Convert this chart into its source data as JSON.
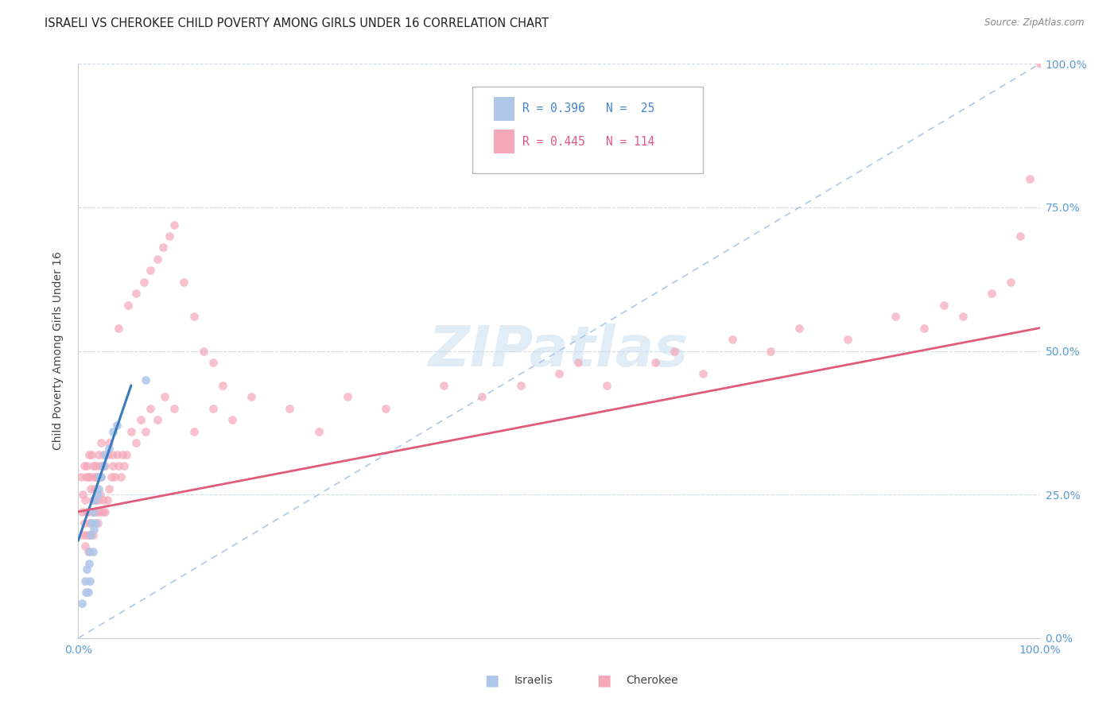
{
  "title": "ISRAELI VS CHEROKEE CHILD POVERTY AMONG GIRLS UNDER 16 CORRELATION CHART",
  "source": "Source: ZipAtlas.com",
  "ylabel": "Child Poverty Among Girls Under 16",
  "xlim": [
    0,
    1.0
  ],
  "ylim": [
    0,
    1.0
  ],
  "xtick_positions": [
    0.0,
    1.0
  ],
  "xtick_labels": [
    "0.0%",
    "100.0%"
  ],
  "ytick_positions": [
    0.0,
    0.25,
    0.5,
    0.75,
    1.0
  ],
  "ytick_labels": [
    "0.0%",
    "25.0%",
    "50.0%",
    "75.0%",
    "100.0%"
  ],
  "watermark_text": "ZIPatlas",
  "legend_label1": "Israelis",
  "legend_label2": "Cherokee",
  "israeli_R": 0.396,
  "israeli_N": 25,
  "cherokee_R": 0.445,
  "cherokee_N": 114,
  "israeli_color": "#aec6e8",
  "cherokee_color": "#f4a7b9",
  "israeli_line_color": "#3a7abf",
  "cherokee_line_color": "#e05c7a",
  "diagonal_color": "#b0c8e8",
  "isr_line_x0": 0.0,
  "isr_line_y0": 0.17,
  "isr_line_x1": 0.055,
  "isr_line_y1": 0.44,
  "che_line_x0": 0.0,
  "che_line_y0": 0.22,
  "che_line_x1": 1.0,
  "che_line_y1": 0.54,
  "isr_x": [
    0.004,
    0.007,
    0.008,
    0.009,
    0.01,
    0.011,
    0.011,
    0.012,
    0.013,
    0.014,
    0.015,
    0.015,
    0.016,
    0.017,
    0.018,
    0.02,
    0.021,
    0.022,
    0.024,
    0.026,
    0.028,
    0.032,
    0.036,
    0.04,
    0.07
  ],
  "isr_y": [
    0.06,
    0.1,
    0.08,
    0.12,
    0.08,
    0.13,
    0.15,
    0.1,
    0.18,
    0.2,
    0.15,
    0.22,
    0.19,
    0.24,
    0.2,
    0.25,
    0.26,
    0.28,
    0.28,
    0.3,
    0.32,
    0.33,
    0.36,
    0.37,
    0.45
  ],
  "che_x": [
    0.003,
    0.004,
    0.005,
    0.005,
    0.006,
    0.006,
    0.007,
    0.007,
    0.008,
    0.008,
    0.009,
    0.009,
    0.01,
    0.01,
    0.01,
    0.011,
    0.011,
    0.012,
    0.012,
    0.013,
    0.013,
    0.014,
    0.014,
    0.015,
    0.015,
    0.015,
    0.016,
    0.016,
    0.017,
    0.018,
    0.018,
    0.019,
    0.019,
    0.02,
    0.02,
    0.021,
    0.021,
    0.022,
    0.022,
    0.023,
    0.024,
    0.024,
    0.025,
    0.025,
    0.026,
    0.026,
    0.028,
    0.028,
    0.03,
    0.03,
    0.032,
    0.032,
    0.034,
    0.035,
    0.036,
    0.038,
    0.04,
    0.042,
    0.044,
    0.046,
    0.048,
    0.05,
    0.055,
    0.06,
    0.065,
    0.07,
    0.075,
    0.082,
    0.09,
    0.1,
    0.12,
    0.14,
    0.16,
    0.18,
    0.22,
    0.25,
    0.28,
    0.32,
    0.38,
    0.42,
    0.46,
    0.5,
    0.52,
    0.55,
    0.6,
    0.62,
    0.65,
    0.68,
    0.72,
    0.75,
    0.8,
    0.85,
    0.88,
    0.9,
    0.92,
    0.95,
    0.97,
    0.98,
    0.99,
    1.0,
    0.042,
    0.052,
    0.06,
    0.068,
    0.075,
    0.082,
    0.088,
    0.095,
    0.1,
    0.11,
    0.12,
    0.13,
    0.14,
    0.15
  ],
  "che_y": [
    0.28,
    0.22,
    0.18,
    0.25,
    0.2,
    0.3,
    0.16,
    0.24,
    0.18,
    0.28,
    0.22,
    0.3,
    0.15,
    0.22,
    0.28,
    0.18,
    0.32,
    0.2,
    0.28,
    0.18,
    0.26,
    0.2,
    0.32,
    0.18,
    0.24,
    0.3,
    0.22,
    0.28,
    0.26,
    0.24,
    0.3,
    0.22,
    0.28,
    0.2,
    0.28,
    0.24,
    0.32,
    0.22,
    0.3,
    0.25,
    0.28,
    0.34,
    0.22,
    0.3,
    0.24,
    0.32,
    0.22,
    0.3,
    0.24,
    0.32,
    0.26,
    0.34,
    0.28,
    0.32,
    0.3,
    0.28,
    0.32,
    0.3,
    0.28,
    0.32,
    0.3,
    0.32,
    0.36,
    0.34,
    0.38,
    0.36,
    0.4,
    0.38,
    0.42,
    0.4,
    0.36,
    0.4,
    0.38,
    0.42,
    0.4,
    0.36,
    0.42,
    0.4,
    0.44,
    0.42,
    0.44,
    0.46,
    0.48,
    0.44,
    0.48,
    0.5,
    0.46,
    0.52,
    0.5,
    0.54,
    0.52,
    0.56,
    0.54,
    0.58,
    0.56,
    0.6,
    0.62,
    0.7,
    0.8,
    1.0,
    0.54,
    0.58,
    0.6,
    0.62,
    0.64,
    0.66,
    0.68,
    0.7,
    0.72,
    0.62,
    0.56,
    0.5,
    0.48,
    0.44
  ]
}
